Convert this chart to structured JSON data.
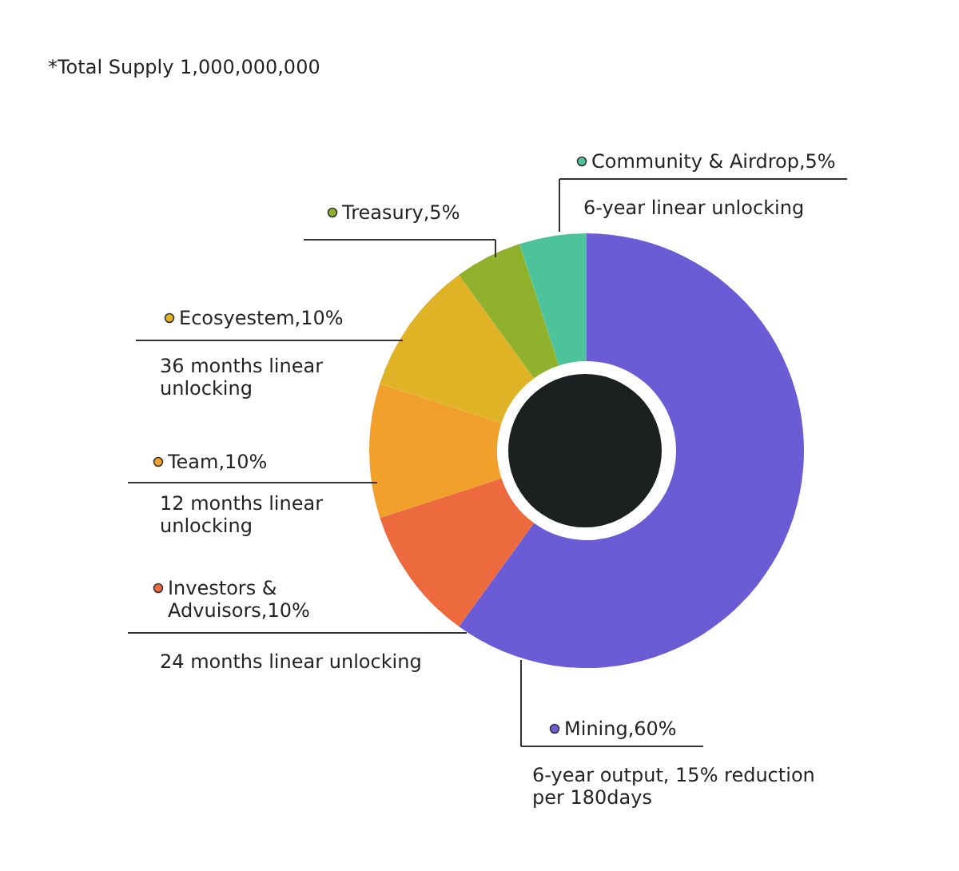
{
  "chart_data": {
    "type": "donut",
    "categories": [
      "Mining",
      "Investors & Advuisors",
      "Team",
      "Ecosyestem",
      "Treasury",
      "Community & Airdrop"
    ],
    "values": [
      60,
      10,
      10,
      10,
      5,
      5
    ],
    "value_labels": [
      "60%",
      "10%",
      "10%",
      "10%",
      "5%",
      "5%"
    ],
    "colors": [
      "#6b5bd5",
      "#ec6a3d",
      "#f0a02b",
      "#dfb325",
      "#8fb12b",
      "#4dc39b"
    ],
    "annotations": [
      "6-year output, 15% reduction per 180days",
      "24 months linear unlocking",
      "12 months linear unlocking",
      "36 months linear unlocking",
      "6-year linear unlocking",
      "*Total Supply 1,000,000,000"
    ],
    "legend": "left"
  }
}
